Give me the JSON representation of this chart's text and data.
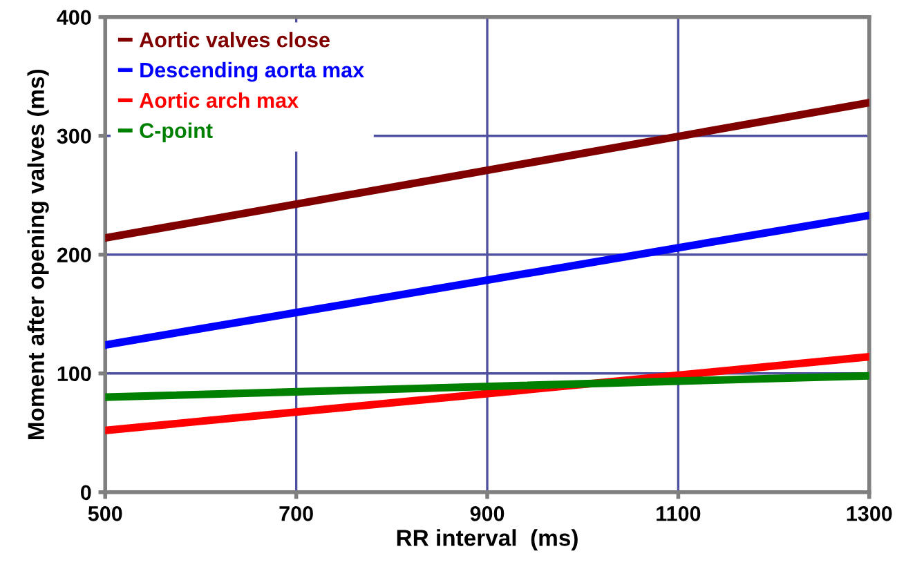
{
  "chart_data": {
    "type": "line",
    "xlabel": "RR interval  (ms)",
    "ylabel": "Moment after opening valves (ms)",
    "x": [
      500,
      1300
    ],
    "series": [
      {
        "name": "Aortic valves close",
        "color": "#800000",
        "values": [
          214,
          328
        ]
      },
      {
        "name": "Descending aorta max",
        "color": "#0000ff",
        "values": [
          124,
          233
        ]
      },
      {
        "name": "Aortic arch max",
        "color": "#ff0000",
        "values": [
          52,
          114
        ]
      },
      {
        "name": "C-point",
        "color": "#008000",
        "values": [
          80,
          98
        ]
      }
    ],
    "xlim": [
      500,
      1300
    ],
    "xticks": [
      500,
      700,
      900,
      1100,
      1300
    ],
    "ylim": [
      0,
      400
    ],
    "yticks": [
      0,
      100,
      200,
      300,
      400
    ],
    "grid": true,
    "legend": "top left",
    "marker": "none",
    "line_style": "solid"
  }
}
